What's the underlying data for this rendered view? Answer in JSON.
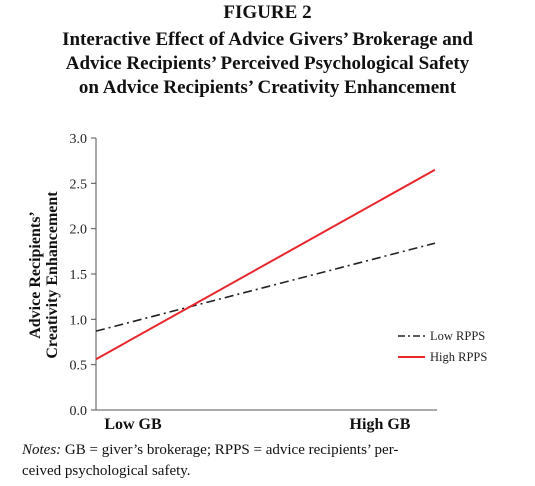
{
  "figure_label": "FIGURE 2",
  "title_lines": [
    "Interactive Effect of Advice Givers’ Brokerage and",
    "Advice Recipients’ Perceived Psychological Safety",
    "on Advice Recipients’ Creativity Enhancement"
  ],
  "notes": {
    "lead": "Notes:",
    "line1": " GB = giver’s brokerage; RPPS = advice recipients’ per-",
    "line2": "ceived psychological safety."
  },
  "chart_data": {
    "type": "line",
    "ylabel_lines": [
      "Advice Recipients’",
      "Creativity Enhancement"
    ],
    "x": [
      "Low GB",
      "High GB"
    ],
    "ylim": [
      0,
      3.0
    ],
    "yticks": [
      "0.0",
      "0.5",
      "1.0",
      "1.5",
      "2.0",
      "2.5",
      "3.0"
    ],
    "ytick_values": [
      0,
      0.5,
      1.0,
      1.5,
      2.0,
      2.5,
      3.0
    ],
    "grid": false,
    "legend_position": "right",
    "series": [
      {
        "name": "Low RPPS",
        "values": [
          0.87,
          1.84
        ],
        "color": "#222222",
        "style": "dash-dot"
      },
      {
        "name": "High RPPS",
        "values": [
          0.56,
          2.65
        ],
        "color": "#e8262c",
        "style": "solid"
      }
    ]
  }
}
